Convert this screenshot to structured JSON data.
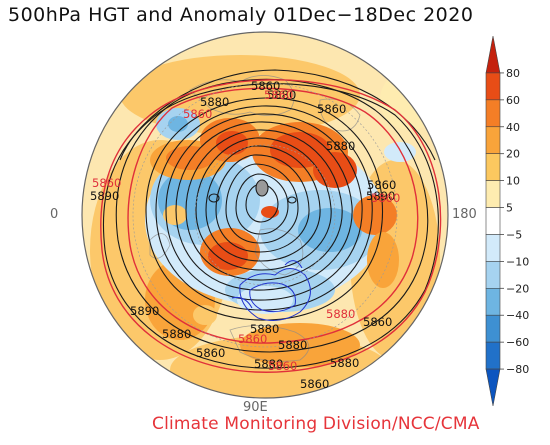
{
  "title": "500hPa HGT and Anomaly 01Dec−18Dec 2020",
  "credit": "Climate Monitoring Division/NCC/CMA",
  "map": {
    "projection": "polar stereographic (north pole)",
    "longitude_labels": [
      "0",
      "180",
      "90E"
    ],
    "contour_labels_black": [
      "5860",
      "5880",
      "5880",
      "5860",
      "5880",
      "5890",
      "5860",
      "5890",
      "5880",
      "5860",
      "5890",
      "5880",
      "5860",
      "5880",
      "5880",
      "5860",
      "5880"
    ],
    "contour_labels_red": [
      "5860",
      "5860",
      "5860",
      "5860",
      "5880",
      "5860",
      "5860"
    ]
  },
  "legend": {
    "ticks": [
      "80",
      "60",
      "40",
      "20",
      "10",
      "5",
      "−5",
      "−10",
      "−20",
      "−40",
      "−60",
      "−80"
    ],
    "colors": [
      "#c4220e",
      "#e84d16",
      "#f47e26",
      "#f9a43a",
      "#fcc85f",
      "#feecb0",
      "#ffffff",
      "#d2eafa",
      "#a6d3f0",
      "#6eb5e2",
      "#3e90d2",
      "#2171c9",
      "#0c55bf"
    ]
  },
  "colors": {
    "positive_anomaly": "#f47e26",
    "negative_anomaly": "#6eb5e2",
    "credit_text": "#e6343a",
    "red_contour": "#e0303a",
    "blue_contour": "#2233cc"
  }
}
